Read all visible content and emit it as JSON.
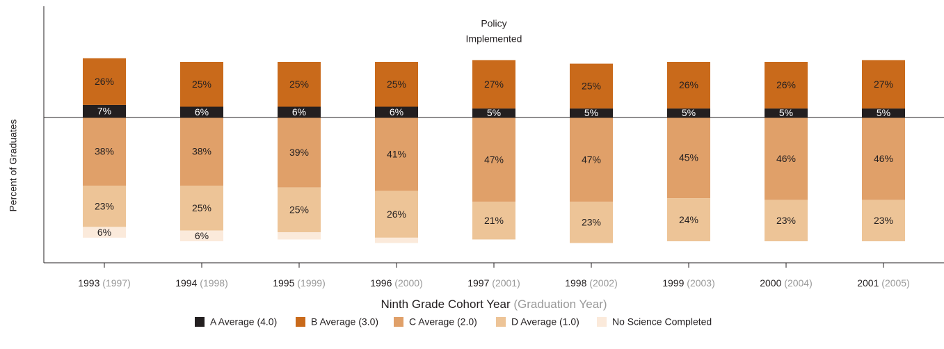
{
  "chart_data": {
    "type": "diverging_stacked_bar",
    "y_label": "Percent of Graduates",
    "x_label": "Ninth Grade Cohort Year",
    "x_label_note": "(Graduation Year)",
    "annotation": [
      "Policy",
      "Implemented"
    ],
    "categories": [
      "1993",
      "1994",
      "1995",
      "1996",
      "1997",
      "1998",
      "1999",
      "2000",
      "2001"
    ],
    "graduation_years": [
      "(1997)",
      "(1998)",
      "(1999)",
      "(2000)",
      "(2001)",
      "(2002)",
      "(2003)",
      "(2004)",
      "(2005)"
    ],
    "ylim": [
      -81,
      62
    ],
    "series": [
      {
        "name": "A Average (4.0)",
        "color": "#231f20",
        "side": "above",
        "values": [
          7,
          6,
          6,
          6,
          5,
          5,
          5,
          5,
          5
        ],
        "value_labels": [
          "7%",
          "6%",
          "6%",
          "6%",
          "5%",
          "5%",
          "5%",
          "5%",
          "5%"
        ]
      },
      {
        "name": "B Average (3.0)",
        "color": "#c96a1b",
        "side": "above",
        "values": [
          26,
          25,
          25,
          25,
          27,
          25,
          26,
          26,
          27
        ],
        "value_labels": [
          "26%",
          "25%",
          "25%",
          "25%",
          "27%",
          "25%",
          "26%",
          "26%",
          "27%"
        ]
      },
      {
        "name": "C Average (2.0)",
        "color": "#e0a069",
        "side": "below",
        "values": [
          38,
          38,
          39,
          41,
          47,
          47,
          45,
          46,
          46
        ],
        "value_labels": [
          "38%",
          "38%",
          "39%",
          "41%",
          "47%",
          "47%",
          "45%",
          "46%",
          "46%"
        ]
      },
      {
        "name": "D Average (1.0)",
        "color": "#edc497",
        "side": "below",
        "values": [
          23,
          25,
          25,
          26,
          21,
          23,
          24,
          23,
          23
        ],
        "value_labels": [
          "23%",
          "25%",
          "25%",
          "26%",
          "21%",
          "23%",
          "24%",
          "23%",
          "23%"
        ]
      },
      {
        "name": "No Science Completed",
        "color": "#fbeadb",
        "side": "below",
        "values": [
          6,
          6,
          4,
          3,
          null,
          null,
          null,
          null,
          null
        ],
        "value_labels": [
          "6%",
          "6%",
          null,
          null,
          null,
          null,
          null,
          null,
          null
        ]
      }
    ]
  }
}
